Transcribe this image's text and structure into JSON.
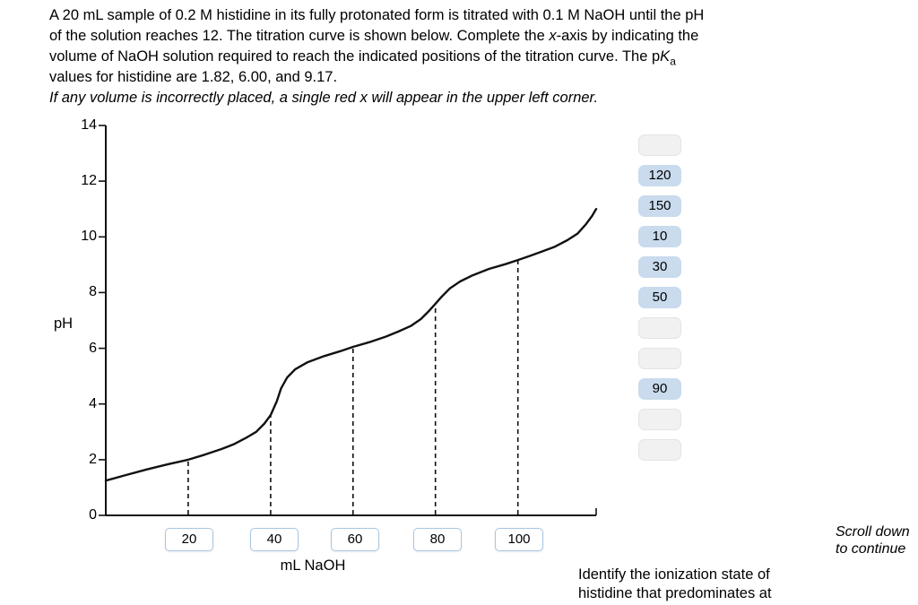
{
  "statement": {
    "line1": "A 20 mL sample of 0.2 M histidine in its fully protonated form is titrated with 0.1 M NaOH until the pH",
    "line2_pre": "of the solution reaches 12. The titration curve is shown below. Complete the ",
    "line2_x": "x",
    "line2_post": "-axis by indicating the",
    "line3_pre": "volume of NaOH solution required to reach the indicated positions of the titration curve. The p",
    "line3_K": "K",
    "line3_sub": "a",
    "line4": "values for histidine are 1.82, 6.00, and 9.17.",
    "note": "If any volume is incorrectly placed, a single red x will appear in the upper left corner."
  },
  "chart_data": {
    "type": "line",
    "title": "",
    "xlabel": "mL NaOH",
    "ylabel": "pH",
    "xlim": [
      0,
      119
    ],
    "ylim": [
      0,
      14
    ],
    "grid": false,
    "y_tick_values": [
      14,
      12,
      10,
      8,
      6,
      4,
      2,
      0
    ],
    "y_tick_labels": [
      "14",
      "12",
      "10",
      "8",
      "6",
      "4",
      "2",
      "0"
    ],
    "x_axis_chips": [
      "20",
      "40",
      "60",
      "80",
      "100"
    ],
    "dashed_line_x_values": [
      20,
      40,
      60,
      80,
      100
    ],
    "pKa_values": [
      1.82,
      6.0,
      9.17
    ],
    "curve_points": [
      [
        0,
        1.25
      ],
      [
        5,
        1.45
      ],
      [
        10,
        1.65
      ],
      [
        15,
        1.83
      ],
      [
        20,
        2.0
      ],
      [
        24,
        2.18
      ],
      [
        28,
        2.38
      ],
      [
        31,
        2.55
      ],
      [
        34,
        2.78
      ],
      [
        36.5,
        3.0
      ],
      [
        38.5,
        3.3
      ],
      [
        40,
        3.6
      ],
      [
        41.5,
        4.1
      ],
      [
        42.5,
        4.55
      ],
      [
        44,
        4.95
      ],
      [
        46,
        5.25
      ],
      [
        49,
        5.5
      ],
      [
        53,
        5.72
      ],
      [
        57,
        5.9
      ],
      [
        60,
        6.05
      ],
      [
        64,
        6.22
      ],
      [
        68,
        6.42
      ],
      [
        71,
        6.6
      ],
      [
        74,
        6.8
      ],
      [
        76.5,
        7.05
      ],
      [
        78.5,
        7.35
      ],
      [
        80,
        7.6
      ],
      [
        81.5,
        7.85
      ],
      [
        83.5,
        8.15
      ],
      [
        86,
        8.4
      ],
      [
        89,
        8.62
      ],
      [
        93,
        8.85
      ],
      [
        97,
        9.02
      ],
      [
        100,
        9.17
      ],
      [
        103,
        9.32
      ],
      [
        106,
        9.48
      ],
      [
        109,
        9.65
      ],
      [
        112,
        9.88
      ],
      [
        114.5,
        10.12
      ],
      [
        116.5,
        10.45
      ],
      [
        118,
        10.75
      ],
      [
        119,
        11.0
      ]
    ]
  },
  "bank": {
    "slots": [
      {
        "label": ""
      },
      {
        "label": "120"
      },
      {
        "label": "150"
      },
      {
        "label": "10"
      },
      {
        "label": "30"
      },
      {
        "label": "50"
      },
      {
        "label": ""
      },
      {
        "label": ""
      },
      {
        "label": "90"
      },
      {
        "label": ""
      },
      {
        "label": ""
      }
    ]
  },
  "footer": {
    "next_question_line1": "Identify the ionization state of",
    "next_question_line2": "histidine that predominates at"
  },
  "scroll_hint": {
    "line1": "Scroll down",
    "line2": "to continue"
  }
}
